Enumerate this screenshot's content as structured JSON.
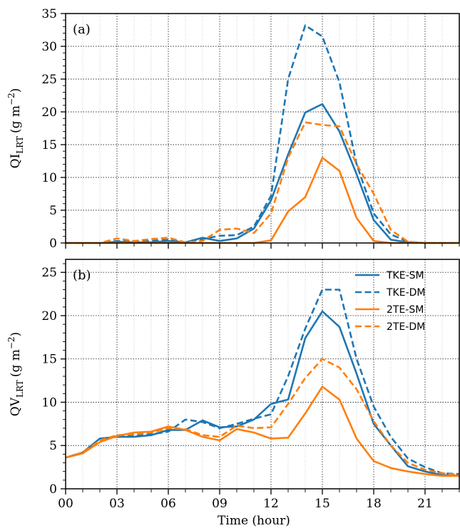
{
  "chart_data": [
    {
      "type": "line",
      "panel": "(a)",
      "ylabel_main": "QI",
      "ylabel_sub": "LRT",
      "ylabel_unit": "(g m",
      "ylabel_exp": "−2",
      "ylabel_close": ")",
      "xlabel": "",
      "xlim": [
        0,
        23
      ],
      "ylim": [
        0,
        35
      ],
      "yticks": [
        0,
        5,
        10,
        15,
        20,
        25,
        30,
        35
      ],
      "ytick_labels": [
        "0",
        "5",
        "10",
        "15",
        "20",
        "25",
        "30",
        "35"
      ],
      "grid": true,
      "x": [
        0,
        1,
        2,
        3,
        4,
        5,
        6,
        7,
        8,
        9,
        10,
        11,
        12,
        13,
        14,
        15,
        16,
        17,
        18,
        19,
        20,
        21,
        22,
        23
      ],
      "series": [
        {
          "name": "TKE-SM",
          "color": "#1f77b4",
          "dash": "solid",
          "values": [
            0,
            0,
            0,
            0.2,
            0.1,
            0.1,
            0.3,
            0.1,
            0.8,
            0.3,
            0.7,
            2.2,
            6.5,
            13.5,
            19.9,
            21.2,
            17.0,
            10.5,
            3.5,
            0.5,
            0.1,
            0,
            0,
            0
          ]
        },
        {
          "name": "TKE-DM",
          "color": "#1f77b4",
          "dash": "dashed",
          "values": [
            0,
            0,
            0,
            0.3,
            0.2,
            0.3,
            0.5,
            0.1,
            0.6,
            1.1,
            1.2,
            2.5,
            7.2,
            25.0,
            33.2,
            31.5,
            24.5,
            12.0,
            4.5,
            1.3,
            0.2,
            0,
            0,
            0
          ]
        },
        {
          "name": "2TE-SM",
          "color": "#ff7f0e",
          "dash": "solid",
          "values": [
            0,
            0,
            0,
            0,
            0,
            0,
            0,
            0,
            0,
            0,
            0,
            0,
            0.4,
            4.8,
            7.0,
            13.0,
            11.0,
            3.8,
            0.3,
            0,
            0,
            0,
            0,
            0
          ]
        },
        {
          "name": "2TE-DM",
          "color": "#ff7f0e",
          "dash": "dashed",
          "values": [
            0,
            0,
            0,
            0.7,
            0.3,
            0.6,
            0.8,
            0.1,
            0.3,
            2.0,
            2.2,
            1.5,
            4.5,
            13.0,
            18.4,
            18.0,
            17.8,
            12.0,
            7.5,
            2.0,
            0.2,
            0,
            0,
            0
          ]
        }
      ]
    },
    {
      "type": "line",
      "panel": "(b)",
      "ylabel_main": "QV",
      "ylabel_sub": "LRT",
      "ylabel_unit": "(g m",
      "ylabel_exp": "−2",
      "ylabel_close": ")",
      "xlabel": "Time (hour)",
      "xlim": [
        0,
        23
      ],
      "ylim": [
        0,
        26.5
      ],
      "yticks": [
        0,
        5,
        10,
        15,
        20,
        25
      ],
      "ytick_labels": [
        "0",
        "5",
        "10",
        "15",
        "20",
        "25"
      ],
      "xticks": [
        0,
        3,
        6,
        9,
        12,
        15,
        18,
        21
      ],
      "xtick_labels": [
        "00",
        "03",
        "06",
        "09",
        "12",
        "15",
        "18",
        "21"
      ],
      "grid": true,
      "legend": "top-right",
      "x": [
        0,
        1,
        2,
        3,
        4,
        5,
        6,
        7,
        8,
        9,
        10,
        11,
        12,
        13,
        14,
        15,
        16,
        17,
        18,
        19,
        20,
        21,
        22,
        23
      ],
      "series": [
        {
          "name": "TKE-SM",
          "color": "#1f77b4",
          "dash": "solid",
          "values": [
            3.6,
            4.2,
            5.8,
            6.0,
            6.0,
            6.2,
            6.8,
            6.8,
            7.9,
            7.1,
            7.2,
            8.0,
            9.8,
            10.3,
            17.4,
            20.5,
            18.7,
            13.3,
            7.5,
            5.0,
            2.6,
            2.0,
            1.6,
            1.5
          ]
        },
        {
          "name": "TKE-DM",
          "color": "#1f77b4",
          "dash": "dashed",
          "values": [
            3.6,
            4.2,
            5.8,
            6.0,
            6.1,
            6.3,
            6.6,
            8.0,
            7.7,
            7.0,
            7.5,
            8.1,
            8.6,
            13.0,
            18.5,
            23.0,
            23.0,
            15.0,
            9.5,
            6.0,
            3.5,
            2.5,
            1.8,
            1.7
          ]
        },
        {
          "name": "2TE-SM",
          "color": "#ff7f0e",
          "dash": "solid",
          "values": [
            3.6,
            4.1,
            5.4,
            6.1,
            6.5,
            6.6,
            7.2,
            6.8,
            6.0,
            5.6,
            6.9,
            6.5,
            5.8,
            5.9,
            8.7,
            11.8,
            10.3,
            5.8,
            3.2,
            2.4,
            2.0,
            1.7,
            1.5,
            1.5
          ]
        },
        {
          "name": "2TE-DM",
          "color": "#ff7f0e",
          "dash": "dashed",
          "values": [
            3.6,
            4.2,
            5.6,
            6.2,
            6.3,
            6.5,
            7.0,
            6.9,
            6.2,
            6.0,
            7.3,
            7.0,
            7.1,
            9.8,
            12.8,
            15.0,
            14.0,
            11.5,
            7.8,
            5.0,
            3.0,
            2.2,
            1.8,
            1.6
          ]
        }
      ]
    }
  ]
}
